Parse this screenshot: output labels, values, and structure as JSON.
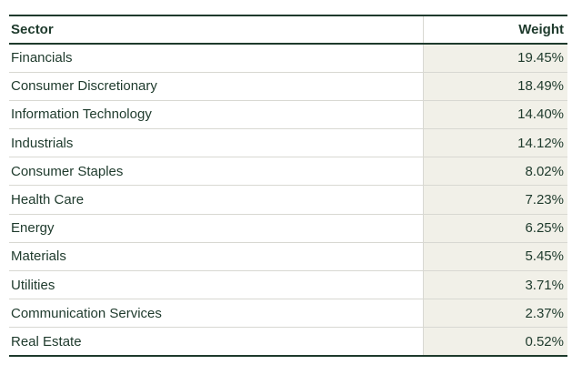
{
  "table": {
    "columns": {
      "sector": "Sector",
      "weight": "Weight"
    },
    "rows": [
      {
        "sector": "Financials",
        "weight": "19.45%"
      },
      {
        "sector": "Consumer Discretionary",
        "weight": "18.49%"
      },
      {
        "sector": "Information Technology",
        "weight": "14.40%"
      },
      {
        "sector": "Industrials",
        "weight": "14.12%"
      },
      {
        "sector": "Consumer Staples",
        "weight": "8.02%"
      },
      {
        "sector": "Health Care",
        "weight": "7.23%"
      },
      {
        "sector": "Energy",
        "weight": "6.25%"
      },
      {
        "sector": "Materials",
        "weight": "5.45%"
      },
      {
        "sector": "Utilities",
        "weight": "3.71%"
      },
      {
        "sector": "Communication Services",
        "weight": "2.37%"
      },
      {
        "sector": "Real Estate",
        "weight": "0.52%"
      }
    ],
    "colors": {
      "text": "#1E3A2C",
      "heavy_border": "#1E3A2C",
      "light_border": "#D8D8D2",
      "weight_column_bg": "#F1F0E8",
      "page_bg": "#FFFFFF"
    }
  },
  "chart_data": {
    "type": "table",
    "title": "",
    "columns": [
      "Sector",
      "Weight"
    ],
    "categories": [
      "Financials",
      "Consumer Discretionary",
      "Information Technology",
      "Industrials",
      "Consumer Staples",
      "Health Care",
      "Energy",
      "Materials",
      "Utilities",
      "Communication Services",
      "Real Estate"
    ],
    "values": [
      19.45,
      18.49,
      14.4,
      14.12,
      8.02,
      7.23,
      6.25,
      5.45,
      3.71,
      2.37,
      0.52
    ],
    "value_unit": "%",
    "sort_order": "descending by weight"
  }
}
